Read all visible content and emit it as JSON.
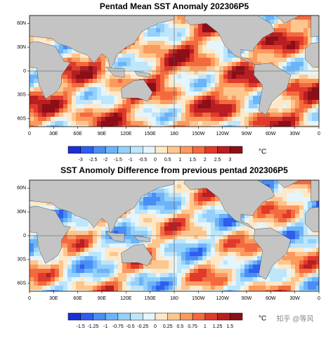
{
  "panels": [
    {
      "title": "Pentad Mean SST Anomaly 202306P5",
      "lat_labels": [
        "60N",
        "30N",
        "0",
        "30S",
        "60S"
      ],
      "lon_labels": [
        "0",
        "30E",
        "60E",
        "90E",
        "120E",
        "150E",
        "180",
        "150W",
        "120W",
        "90W",
        "60W",
        "30W",
        "0"
      ],
      "colorbar_labels": [
        "-3",
        "-2.5",
        "-2",
        "-1.5",
        "-1",
        "-0.5",
        "0",
        "0.5",
        "1",
        "1.5",
        "2",
        "2.5",
        "3"
      ],
      "unit": "°C"
    },
    {
      "title": "SST Anomoly Difference from previous pentad 202306P5",
      "lat_labels": [
        "60N",
        "30N",
        "0",
        "30S",
        "60S"
      ],
      "lon_labels": [
        "0",
        "30E",
        "60E",
        "90E",
        "120E",
        "150E",
        "180",
        "150W",
        "120W",
        "90W",
        "60W",
        "30W",
        "0"
      ],
      "colorbar_labels": [
        "-1.5",
        "-1.25",
        "-1",
        "-0.75",
        "-0.5",
        "-0.25",
        "0",
        "0.25",
        "0.5",
        "0.75",
        "1",
        "1.25",
        "1.5"
      ],
      "unit": "°C"
    }
  ],
  "palette": [
    "#1a2fd6",
    "#2e5ef0",
    "#4a8ef5",
    "#6cb4f8",
    "#94d0fa",
    "#bde6fb",
    "#e4f5fb",
    "#fde8c8",
    "#fdc68f",
    "#fb9a5e",
    "#f36a3e",
    "#e03a2c",
    "#b81e22",
    "#8c0f18"
  ],
  "watermark": "知乎 @等风"
}
